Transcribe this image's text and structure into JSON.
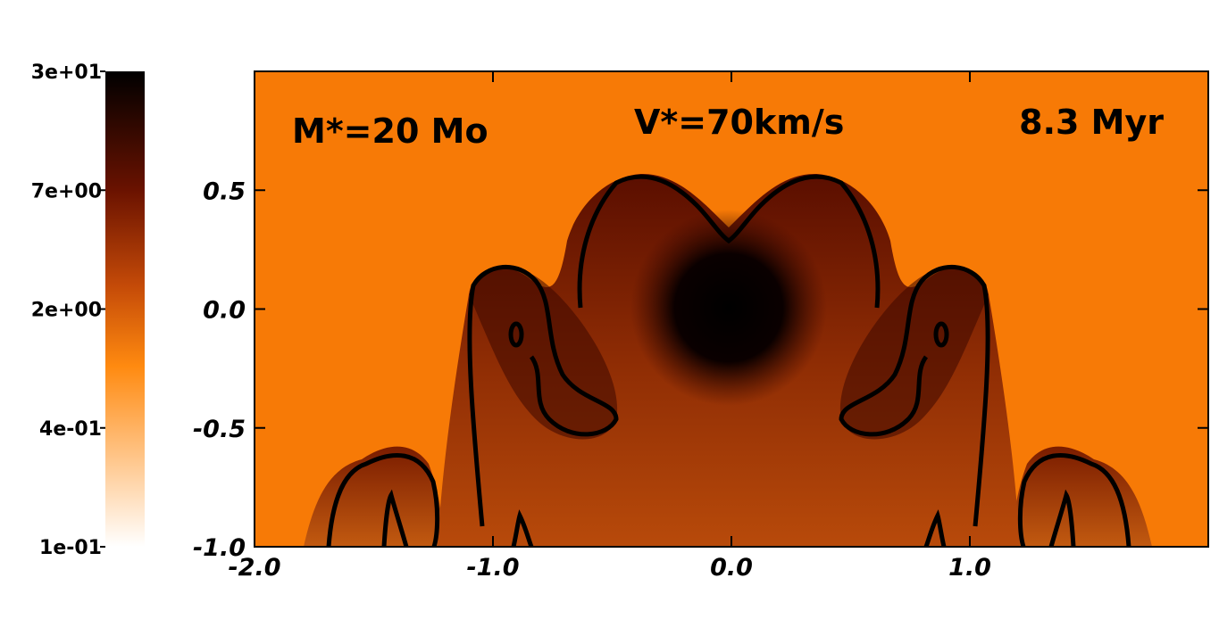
{
  "chart_data": {
    "type": "heatmap",
    "title": "",
    "xlabel": "",
    "ylabel": "",
    "xlim": [
      -2.0,
      2.0
    ],
    "ylim": [
      -1.0,
      1.0
    ],
    "x_ticks": [
      "-2.0",
      "-1.0",
      "0.0",
      "1.0"
    ],
    "y_ticks": [
      "0.5",
      "0.0",
      "-0.5",
      "-1.0"
    ],
    "annotations": {
      "mass": "M*=20 Mo",
      "velocity": "V*=70km/s",
      "time": "8.3 Myr"
    },
    "colorbar": {
      "scale": "log",
      "range": [
        0.1,
        30
      ],
      "tick_labels": [
        "3e+01",
        "7e+00",
        "2e+00",
        "4e-01",
        "1e-01"
      ],
      "colors": [
        "#ffffff",
        "#ff8000",
        "#7a1500",
        "#000000"
      ]
    },
    "background_color": "#f77a06"
  }
}
